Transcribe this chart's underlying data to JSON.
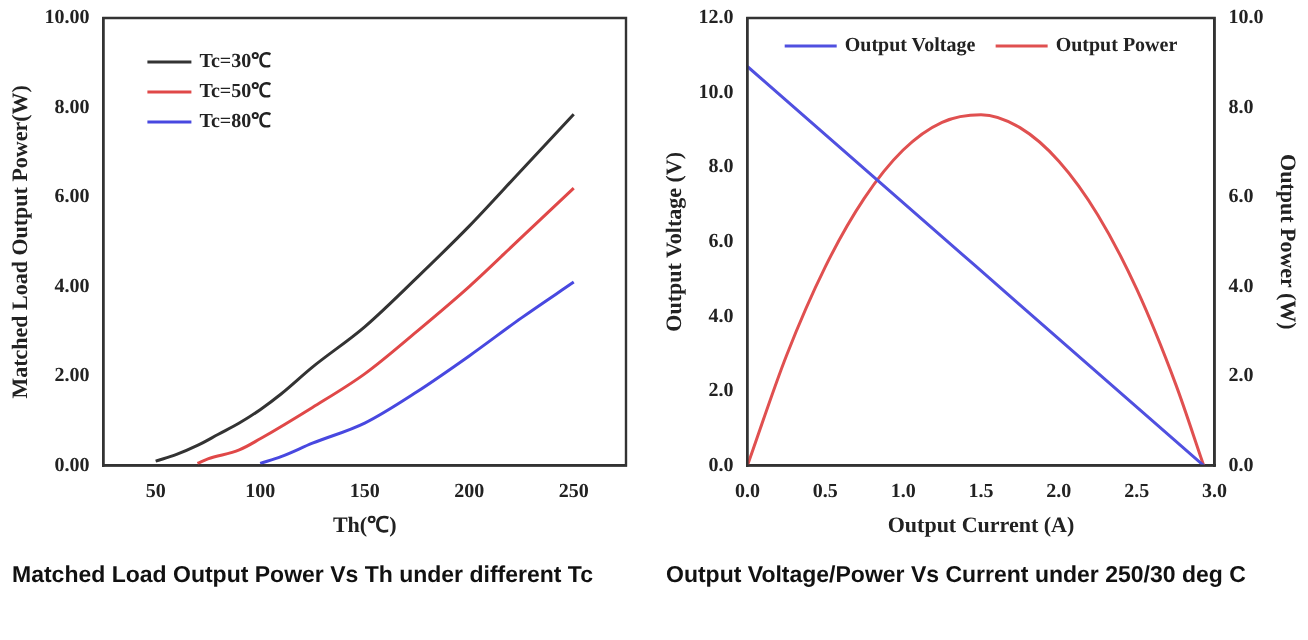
{
  "chart_data": [
    {
      "type": "line",
      "xlabel": "Th(℃)",
      "ylabel": "Matched Load Output Power(W)",
      "xlim": [
        25,
        275
      ],
      "xticks": [
        50,
        100,
        150,
        200,
        250
      ],
      "ylim": [
        0,
        10
      ],
      "yticks": [
        {
          "value": 0,
          "label": "0.00"
        },
        {
          "value": 2,
          "label": "2.00"
        },
        {
          "value": 4,
          "label": "4.00"
        },
        {
          "value": 6,
          "label": "6.00"
        },
        {
          "value": 8,
          "label": "8.00"
        },
        {
          "value": 10,
          "label": "10.00"
        }
      ],
      "grid": false,
      "legend": "top left",
      "marker": "none",
      "line_style": "solid",
      "annotations": [
        "Matched Load Output Power Vs Th under different Tc"
      ],
      "series": [
        {
          "name": "Tc=30℃",
          "color": "#333333",
          "x": [
            50,
            60,
            70,
            80,
            90,
            100,
            110,
            125,
            150,
            175,
            200,
            225,
            250
          ],
          "values": [
            0.1,
            0.25,
            0.45,
            0.7,
            0.95,
            1.25,
            1.6,
            2.2,
            3.1,
            4.2,
            5.35,
            6.6,
            7.85
          ]
        },
        {
          "name": "Tc=50℃",
          "color": "#e04848",
          "x": [
            70,
            75,
            90,
            100,
            125,
            150,
            175,
            200,
            225,
            250
          ],
          "values": [
            0.05,
            0.15,
            0.35,
            0.6,
            1.3,
            2.05,
            3.0,
            4.0,
            5.1,
            6.2
          ]
        },
        {
          "name": "Tc=80℃",
          "color": "#4848e0",
          "x": [
            100,
            110,
            125,
            150,
            175,
            200,
            225,
            250
          ],
          "values": [
            0.05,
            0.2,
            0.5,
            0.95,
            1.65,
            2.45,
            3.3,
            4.1
          ]
        }
      ]
    },
    {
      "type": "line",
      "xlabel": "Output Current (A)",
      "ylabel": "Output Voltage (V)",
      "y2label": "Output Power (W)",
      "xlim": [
        0,
        3
      ],
      "xticks": [
        {
          "value": 0,
          "label": "0.0"
        },
        {
          "value": 0.5,
          "label": "0.5"
        },
        {
          "value": 1,
          "label": "1.0"
        },
        {
          "value": 1.5,
          "label": "1.5"
        },
        {
          "value": 2,
          "label": "2.0"
        },
        {
          "value": 2.5,
          "label": "2.5"
        },
        {
          "value": 3,
          "label": "3.0"
        }
      ],
      "ylim": [
        0,
        12
      ],
      "yticks": [
        {
          "value": 0,
          "label": "0.0"
        },
        {
          "value": 2,
          "label": "2.0"
        },
        {
          "value": 4,
          "label": "4.0"
        },
        {
          "value": 6,
          "label": "6.0"
        },
        {
          "value": 8,
          "label": "8.0"
        },
        {
          "value": 10,
          "label": "10.0"
        },
        {
          "value": 12,
          "label": "12.0"
        }
      ],
      "y2lim": [
        0,
        10
      ],
      "y2ticks": [
        {
          "value": 0,
          "label": "0.0"
        },
        {
          "value": 2,
          "label": "2.0"
        },
        {
          "value": 4,
          "label": "4.0"
        },
        {
          "value": 6,
          "label": "6.0"
        },
        {
          "value": 8,
          "label": "8.0"
        },
        {
          "value": 10,
          "label": "10.0"
        }
      ],
      "grid": false,
      "legend": "top",
      "marker": "none",
      "line_style": "solid",
      "annotations": [
        "Output Voltage/Power Vs Current under 250/30 deg C"
      ],
      "series": [
        {
          "name": "Output Voltage",
          "color": "#5050e0",
          "x": [
            0,
            2.93
          ],
          "values": [
            10.7,
            0
          ]
        },
        {
          "name": "Output Power",
          "color": "#e05050",
          "axis": "y2",
          "x": [
            0,
            0.25,
            0.5,
            0.75,
            1.0,
            1.25,
            1.5,
            1.75,
            2.0,
            2.25,
            2.5,
            2.75,
            2.93
          ],
          "values": [
            0,
            2.45,
            4.44,
            5.97,
            7.05,
            7.67,
            7.84,
            7.55,
            6.8,
            5.6,
            3.94,
            1.82,
            0
          ]
        }
      ]
    }
  ]
}
